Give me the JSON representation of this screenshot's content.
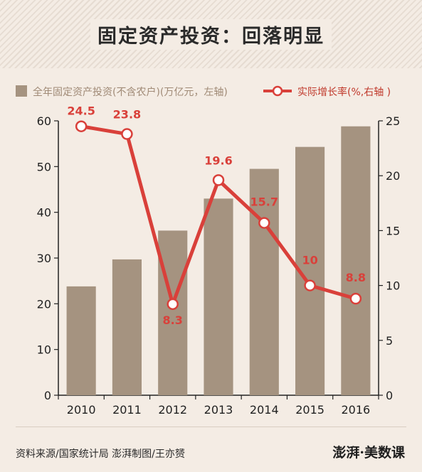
{
  "title": "固定资产投资：回落明显",
  "legend": {
    "bar_label": "全年固定资产投资(不含农户)(万亿元，左轴)",
    "line_label": "实际增长率(%,右轴 )"
  },
  "source": "资料来源/国家统计局   澎湃制图/王亦赟",
  "brand": "澎湃·美数课",
  "colors": {
    "bar": "#a59380",
    "line": "#d9403a",
    "label": "#d9403a"
  },
  "chart_data": {
    "type": "bar+line",
    "categories": [
      "2010",
      "2011",
      "2012",
      "2013",
      "2014",
      "2015",
      "2016"
    ],
    "series": [
      {
        "name": "全年固定资产投资(不含农户)(万亿元，左轴)",
        "type": "bar",
        "axis": "left",
        "values": [
          23.8,
          29.7,
          36.0,
          43.0,
          49.5,
          54.3,
          58.8
        ]
      },
      {
        "name": "实际增长率(%,右轴 )",
        "type": "line",
        "axis": "right",
        "values": [
          24.5,
          23.8,
          8.3,
          19.6,
          15.7,
          10,
          8.8
        ],
        "labels": [
          "24.5",
          "23.8",
          "8.3",
          "19.6",
          "15.7",
          "10",
          "8.8"
        ]
      }
    ],
    "y_left": {
      "min": 0,
      "max": 60,
      "ticks": [
        "0",
        "10",
        "20",
        "30",
        "40",
        "50",
        "60"
      ]
    },
    "y_right": {
      "min": 0,
      "max": 25,
      "ticks": [
        "0",
        "5",
        "10",
        "15",
        "20",
        "25"
      ]
    },
    "grid": false,
    "legend_position": "top"
  }
}
